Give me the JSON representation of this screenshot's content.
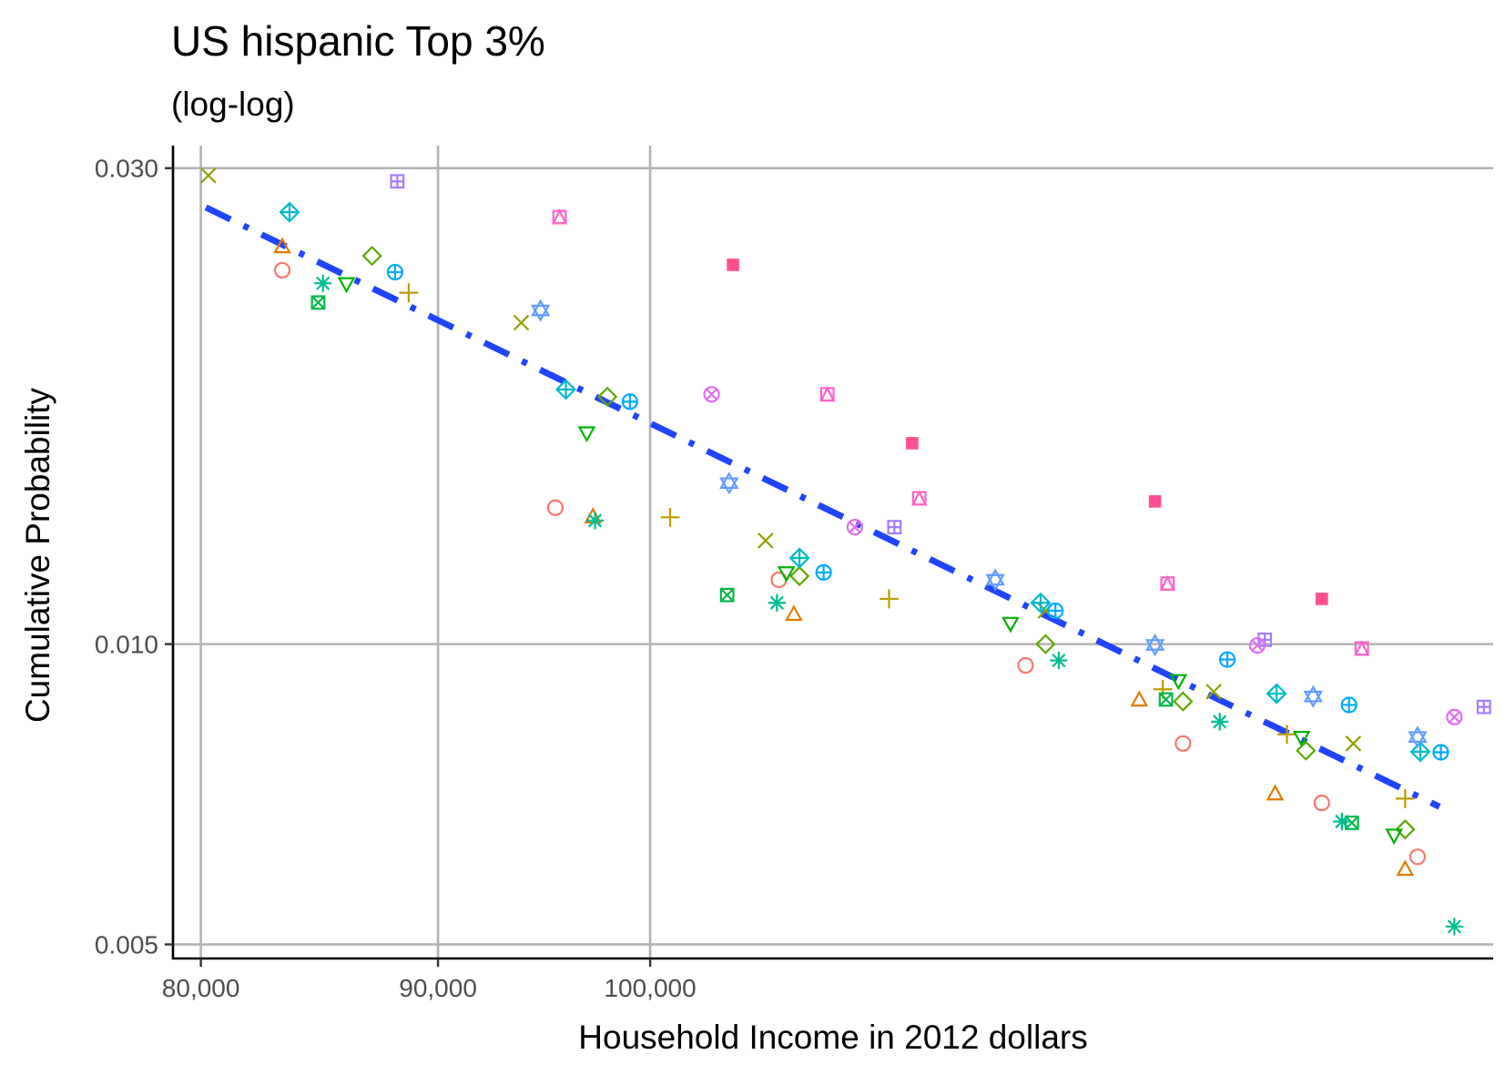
{
  "chart_data": {
    "type": "scatter",
    "title": "US hispanic Top 3%",
    "subtitle": "(log-log)",
    "xlabel": "Household Income in 2012 dollars",
    "ylabel": "Cumulative Probability",
    "x_scale": "log",
    "y_scale": "log",
    "xlim": [
      78900,
      152000
    ],
    "ylim": [
      0.00484,
      0.0316
    ],
    "x_ticks": [
      80000,
      90000,
      100000
    ],
    "x_tick_labels": [
      "80,000",
      "90,000",
      "100,000"
    ],
    "y_ticks": [
      0.005,
      0.01,
      0.03
    ],
    "y_tick_labels": [
      "0.005",
      "0.010",
      "0.030"
    ],
    "grid": "major",
    "legend": "none",
    "trend_line": {
      "style": "dash-dot",
      "color": "#2144ff",
      "x": [
        80200,
        148000
      ],
      "y": [
        0.0274,
        0.00687
      ]
    },
    "series": [
      {
        "color": "#F8766D",
        "shape": "circle",
        "points": [
          [
            83300,
            0.0237
          ],
          [
            95400,
            0.0137
          ],
          [
            106600,
            0.0116
          ],
          [
            120500,
            0.00952
          ],
          [
            130300,
            0.00795
          ],
          [
            139600,
            0.00693
          ],
          [
            146400,
            0.00612
          ]
        ]
      },
      {
        "color": "#E07B00",
        "shape": "triangle",
        "points": [
          [
            83300,
            0.025
          ],
          [
            97200,
            0.0134
          ],
          [
            107400,
            0.0107
          ],
          [
            127500,
            0.00878
          ],
          [
            136400,
            0.00707
          ],
          [
            145500,
            0.00594
          ]
        ]
      },
      {
        "color": "#BB9D00",
        "shape": "plus",
        "points": [
          [
            88700,
            0.0225
          ],
          [
            101000,
            0.0134
          ],
          [
            112600,
            0.0111
          ],
          [
            129000,
            0.00901
          ],
          [
            137200,
            0.00812
          ],
          [
            145500,
            0.007
          ]
        ]
      },
      {
        "color": "#949E00",
        "shape": "cross",
        "points": [
          [
            80300,
            0.0295
          ],
          [
            93800,
            0.021
          ],
          [
            105900,
            0.0127
          ],
          [
            121700,
            0.0108
          ],
          [
            132300,
            0.00896
          ],
          [
            141800,
            0.00795
          ]
        ]
      },
      {
        "color": "#5DA700",
        "shape": "diamond",
        "points": [
          [
            87100,
            0.0245
          ],
          [
            97900,
            0.0177
          ],
          [
            107700,
            0.0117
          ],
          [
            121700,
            0.01
          ],
          [
            130300,
            0.00876
          ],
          [
            138500,
            0.00782
          ],
          [
            145500,
            0.00652
          ]
        ]
      },
      {
        "color": "#00B200",
        "shape": "triangle-down",
        "points": [
          [
            86000,
            0.023
          ],
          [
            96900,
            0.0163
          ],
          [
            107000,
            0.0118
          ],
          [
            119600,
            0.0105
          ],
          [
            130000,
            0.0092
          ],
          [
            138200,
            0.00807
          ],
          [
            144700,
            0.00644
          ]
        ]
      },
      {
        "color": "#00B84A",
        "shape": "square-cross",
        "points": [
          [
            84800,
            0.022
          ],
          [
            103900,
            0.0112
          ],
          [
            129200,
            0.0088
          ],
          [
            141700,
            0.00662
          ]
        ]
      },
      {
        "color": "#00BD92",
        "shape": "asterisk",
        "points": [
          [
            85000,
            0.023
          ],
          [
            97300,
            0.0133
          ],
          [
            106500,
            0.011
          ],
          [
            122500,
            0.00963
          ],
          [
            132700,
            0.00836
          ],
          [
            141000,
            0.00664
          ],
          [
            149100,
            0.00521
          ]
        ]
      },
      {
        "color": "#00BAC7",
        "shape": "square-plus-diamond",
        "points": [
          [
            83600,
            0.0271
          ],
          [
            95900,
            0.018
          ],
          [
            107700,
            0.0122
          ],
          [
            121400,
            0.011
          ],
          [
            136500,
            0.00892
          ],
          [
            146600,
            0.0078
          ]
        ]
      },
      {
        "color": "#00A9FF",
        "shape": "circle-plus",
        "points": [
          [
            88100,
            0.0236
          ],
          [
            99000,
            0.0175
          ],
          [
            109000,
            0.0118
          ],
          [
            122300,
            0.0108
          ],
          [
            133200,
            0.00965
          ],
          [
            141500,
            0.00869
          ],
          [
            148100,
            0.00779
          ]
        ]
      },
      {
        "color": "#619CFF",
        "shape": "star-of-david",
        "points": [
          [
            94700,
            0.0216
          ],
          [
            104000,
            0.0145
          ],
          [
            118700,
            0.0116
          ],
          [
            128500,
            0.00998
          ],
          [
            139000,
            0.00886
          ],
          [
            146400,
            0.00807
          ]
        ]
      },
      {
        "color": "#A57BFF",
        "shape": "square-plus",
        "points": [
          [
            88200,
            0.0291
          ],
          [
            112900,
            0.0131
          ],
          [
            135700,
            0.0101
          ],
          [
            151300,
            0.00865
          ]
        ]
      },
      {
        "color": "#E16DF7",
        "shape": "circle-cross",
        "points": [
          [
            103100,
            0.0178
          ],
          [
            110700,
            0.0131
          ],
          [
            135200,
            0.00997
          ],
          [
            149100,
            0.00845
          ]
        ]
      },
      {
        "color": "#FF61C9",
        "shape": "square-triangle",
        "points": [
          [
            95600,
            0.0268
          ],
          [
            109200,
            0.0178
          ],
          [
            114300,
            0.014
          ],
          [
            129300,
            0.0115
          ],
          [
            142400,
            0.0099
          ]
        ]
      },
      {
        "color": "#FF4F91",
        "shape": "square-filled",
        "points": [
          [
            104200,
            0.024
          ],
          [
            113900,
            0.0159
          ],
          [
            128500,
            0.0139
          ],
          [
            139600,
            0.0111
          ]
        ]
      }
    ]
  }
}
